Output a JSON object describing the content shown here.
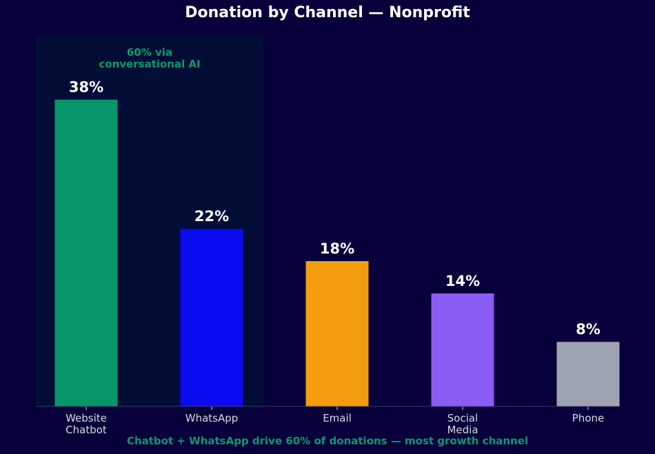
{
  "page": {
    "title": "Donation by Channel — Nonprofit",
    "footer_note": "Chatbot + WhatsApp drive 60% of donations — most growth channel"
  },
  "chart_data": {
    "type": "bar",
    "title": "Donation by Channel — Nonprofit",
    "xlabel": "",
    "ylabel": "",
    "categories": [
      "Website\nChatbot",
      "WhatsApp",
      "Email",
      "Social\nMedia",
      "Phone"
    ],
    "values": [
      38,
      22,
      18,
      14,
      8
    ],
    "data_labels": [
      "38%",
      "22%",
      "18%",
      "14%",
      "8%"
    ],
    "colors": [
      "#06966a",
      "#0a0aef",
      "#f39c0e",
      "#8a5cf3",
      "#9ea3b2"
    ],
    "ylim": [
      0,
      42
    ],
    "grid": false,
    "highlight": {
      "category_indices": [
        0,
        1
      ],
      "label": "60% via\nconversational AI",
      "color": "#0a9a6c",
      "shade_color": "#010d35"
    },
    "colors_theme": {
      "background": "#07003a",
      "text": "#ffffff",
      "tick_text": "#d8d8e4",
      "axis": "#3a3a64"
    }
  }
}
